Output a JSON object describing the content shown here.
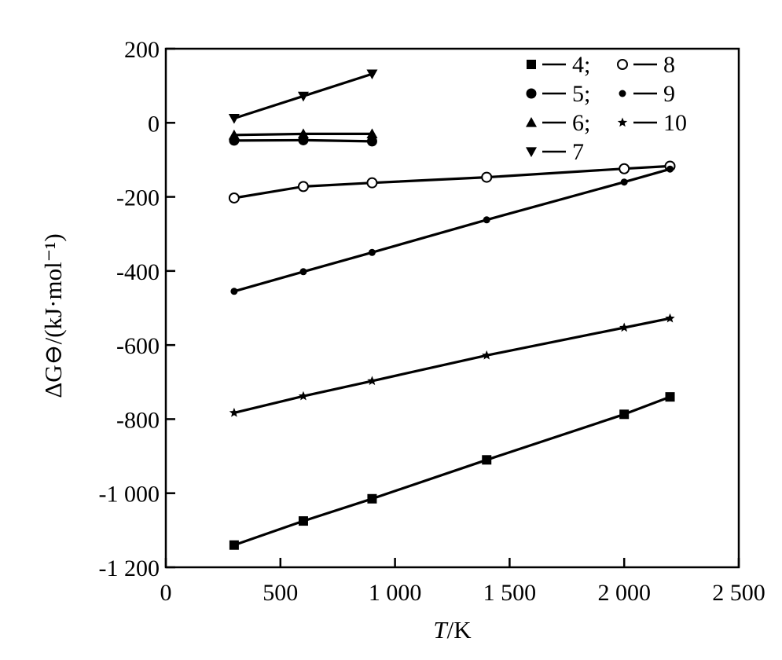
{
  "chart_data": {
    "type": "line",
    "xlabel_italic": "T",
    "xlabel_rest": "/K",
    "ylabel": "ΔG⊖/(kJ·mol⁻¹)",
    "xlim": [
      0,
      2500
    ],
    "ylim": [
      -1200,
      200
    ],
    "x_ticks": [
      {
        "value": 0,
        "label": "0"
      },
      {
        "value": 500,
        "label": "500"
      },
      {
        "value": 1000,
        "label": "1 000"
      },
      {
        "value": 1500,
        "label": "1 500"
      },
      {
        "value": 2000,
        "label": "2 000"
      },
      {
        "value": 2500,
        "label": "2 500"
      }
    ],
    "y_ticks": [
      {
        "value": 200,
        "label": "200"
      },
      {
        "value": 0,
        "label": "0"
      },
      {
        "value": -200,
        "label": "-200"
      },
      {
        "value": -400,
        "label": "-400"
      },
      {
        "value": -600,
        "label": "-600"
      },
      {
        "value": -800,
        "label": "-800"
      },
      {
        "value": -1000,
        "label": "-1 000"
      },
      {
        "value": -1200,
        "label": "-1 200"
      }
    ],
    "grid": false,
    "legend_position": "top-right",
    "legend": [
      {
        "marker": "square",
        "label": "4;"
      },
      {
        "marker": "open-circle",
        "label": "8"
      },
      {
        "marker": "circle",
        "label": "5;"
      },
      {
        "marker": "small-dot",
        "label": "9"
      },
      {
        "marker": "triangle-up",
        "label": "6;"
      },
      {
        "marker": "star",
        "label": "10"
      },
      {
        "marker": "triangle-down",
        "label": "7"
      }
    ],
    "series": [
      {
        "name": "4",
        "marker": "square",
        "x": [
          298,
          600,
          900,
          1400,
          2000,
          2200
        ],
        "y": [
          -1140,
          -1075,
          -1015,
          -910,
          -787,
          -740
        ]
      },
      {
        "name": "5",
        "marker": "circle",
        "x": [
          298,
          600,
          900
        ],
        "y": [
          -48,
          -47,
          -50
        ]
      },
      {
        "name": "6",
        "marker": "triangle-up",
        "x": [
          298,
          600,
          900
        ],
        "y": [
          -33,
          -30,
          -30
        ]
      },
      {
        "name": "7",
        "marker": "triangle-down",
        "x": [
          298,
          600,
          900
        ],
        "y": [
          12,
          72,
          132
        ]
      },
      {
        "name": "8",
        "marker": "open-circle",
        "x": [
          298,
          600,
          900,
          1400,
          2000,
          2200
        ],
        "y": [
          -203,
          -172,
          -162,
          -147,
          -124,
          -117
        ]
      },
      {
        "name": "9",
        "marker": "small-dot",
        "x": [
          298,
          600,
          900,
          1400,
          2000,
          2200
        ],
        "y": [
          -455,
          -402,
          -350,
          -262,
          -160,
          -125
        ]
      },
      {
        "name": "10",
        "marker": "star",
        "x": [
          298,
          600,
          900,
          1400,
          2000,
          2200
        ],
        "y": [
          -783,
          -738,
          -697,
          -628,
          -553,
          -528
        ]
      }
    ]
  }
}
